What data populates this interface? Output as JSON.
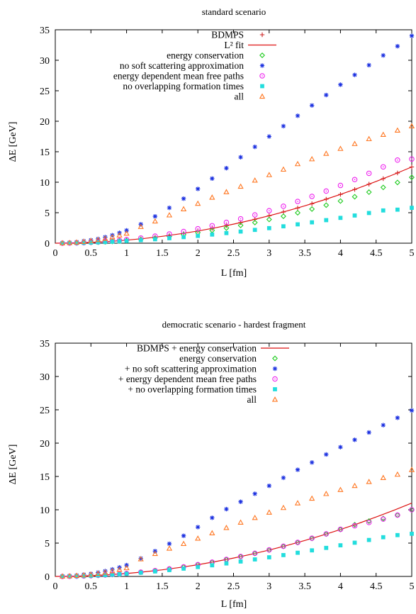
{
  "chart_data": [
    {
      "type": "scatter",
      "title": "standard scenario",
      "xlabel": "L [fm]",
      "ylabel": "ΔE [GeV]",
      "xlim": [
        0,
        5
      ],
      "ylim": [
        0,
        35
      ],
      "xticks": [
        "0",
        "0.5",
        "1",
        "1.5",
        "2",
        "2.5",
        "3",
        "3.5",
        "4",
        "4.5",
        "5"
      ],
      "yticks": [
        "0",
        "5",
        "10",
        "15",
        "20",
        "25",
        "30",
        "35"
      ],
      "grid": false,
      "legend_position": "top-right",
      "series": [
        {
          "name": "BDMPS",
          "marker": "plus",
          "color": "#cc2222",
          "x": [
            0.1,
            0.2,
            0.3,
            0.4,
            0.5,
            0.6,
            0.7,
            0.8,
            0.9,
            1.0,
            1.2,
            1.4,
            1.6,
            1.8,
            2.0,
            2.2,
            2.4,
            2.6,
            2.8,
            3.0,
            3.2,
            3.4,
            3.6,
            3.8,
            4.0,
            4.2,
            4.4,
            4.6,
            4.8,
            5.0
          ],
          "y": [
            0.0,
            0.02,
            0.05,
            0.08,
            0.13,
            0.18,
            0.25,
            0.32,
            0.4,
            0.5,
            0.72,
            0.98,
            1.28,
            1.62,
            2.0,
            2.42,
            2.88,
            3.38,
            3.92,
            4.5,
            5.12,
            5.78,
            6.48,
            7.22,
            8.0,
            8.82,
            9.68,
            10.58,
            11.52,
            12.5
          ]
        },
        {
          "name": "L² fit",
          "marker": "line",
          "color": "#dd1111",
          "x": [
            0,
            0.25,
            0.5,
            0.75,
            1.0,
            1.25,
            1.5,
            1.75,
            2.0,
            2.25,
            2.5,
            2.75,
            3.0,
            3.25,
            3.5,
            3.75,
            4.0,
            4.25,
            4.5,
            4.75,
            5.0
          ],
          "y": [
            0,
            0.03,
            0.13,
            0.28,
            0.5,
            0.78,
            1.13,
            1.53,
            2.0,
            2.53,
            3.13,
            3.78,
            4.5,
            5.28,
            6.13,
            7.03,
            8.0,
            9.03,
            10.13,
            11.28,
            12.5
          ]
        },
        {
          "name": "energy conservation",
          "marker": "diamond",
          "color": "#22cc22",
          "x": [
            0.1,
            0.2,
            0.3,
            0.4,
            0.5,
            0.6,
            0.7,
            0.8,
            0.9,
            1.0,
            1.2,
            1.4,
            1.6,
            1.8,
            2.0,
            2.2,
            2.4,
            2.6,
            2.8,
            3.0,
            3.2,
            3.4,
            3.6,
            3.8,
            4.0,
            4.2,
            4.4,
            4.6,
            4.8,
            5.0
          ],
          "y": [
            0.0,
            0.02,
            0.04,
            0.07,
            0.11,
            0.16,
            0.21,
            0.28,
            0.35,
            0.43,
            0.62,
            0.85,
            1.11,
            1.4,
            1.73,
            2.1,
            2.49,
            2.92,
            3.39,
            3.89,
            4.42,
            4.99,
            5.6,
            6.24,
            6.91,
            7.62,
            8.37,
            9.15,
            9.96,
            10.8
          ]
        },
        {
          "name": "no soft scattering approximation",
          "marker": "star",
          "color": "#1a2fe0",
          "x": [
            0.1,
            0.2,
            0.3,
            0.4,
            0.5,
            0.6,
            0.7,
            0.8,
            0.9,
            1.0,
            1.2,
            1.4,
            1.6,
            1.8,
            2.0,
            2.2,
            2.4,
            2.6,
            2.8,
            3.0,
            3.2,
            3.4,
            3.6,
            3.8,
            4.0,
            4.2,
            4.4,
            4.6,
            4.8,
            5.0
          ],
          "y": [
            0.03,
            0.1,
            0.2,
            0.35,
            0.5,
            0.7,
            1.0,
            1.3,
            1.7,
            2.1,
            3.1,
            4.4,
            5.8,
            7.3,
            8.9,
            10.6,
            12.3,
            14.1,
            15.8,
            17.5,
            19.2,
            20.9,
            22.6,
            24.3,
            26.0,
            27.6,
            29.2,
            30.8,
            32.3,
            34.0
          ]
        },
        {
          "name": "energy dependent mean free paths",
          "marker": "circle",
          "color": "#ee22ee",
          "x": [
            0.1,
            0.2,
            0.3,
            0.4,
            0.5,
            0.6,
            0.7,
            0.8,
            0.9,
            1.0,
            1.2,
            1.4,
            1.6,
            1.8,
            2.0,
            2.2,
            2.4,
            2.6,
            2.8,
            3.0,
            3.2,
            3.4,
            3.6,
            3.8,
            4.0,
            4.2,
            4.4,
            4.6,
            4.8,
            5.0
          ],
          "y": [
            0.0,
            0.02,
            0.05,
            0.09,
            0.15,
            0.21,
            0.29,
            0.38,
            0.48,
            0.59,
            0.85,
            1.16,
            1.51,
            1.92,
            2.37,
            2.87,
            3.41,
            4.0,
            4.64,
            5.33,
            6.06,
            6.84,
            7.67,
            8.55,
            9.47,
            10.44,
            11.46,
            12.52,
            13.63,
            13.8
          ]
        },
        {
          "name": "no overlapping formation times",
          "marker": "square",
          "color": "#22dddd",
          "x": [
            0.1,
            0.2,
            0.3,
            0.4,
            0.5,
            0.6,
            0.7,
            0.8,
            0.9,
            1.0,
            1.2,
            1.4,
            1.6,
            1.8,
            2.0,
            2.2,
            2.4,
            2.6,
            2.8,
            3.0,
            3.2,
            3.4,
            3.6,
            3.8,
            4.0,
            4.2,
            4.4,
            4.6,
            4.8,
            5.0
          ],
          "y": [
            0.0,
            0.02,
            0.04,
            0.07,
            0.1,
            0.14,
            0.19,
            0.24,
            0.3,
            0.37,
            0.5,
            0.65,
            0.82,
            1.0,
            1.2,
            1.42,
            1.66,
            1.91,
            2.18,
            2.47,
            2.77,
            3.09,
            3.42,
            3.78,
            4.15,
            4.54,
            4.95,
            5.37,
            5.5,
            5.8
          ]
        },
        {
          "name": "all",
          "marker": "triangle",
          "color": "#ff7722",
          "x": [
            0.1,
            0.2,
            0.3,
            0.4,
            0.5,
            0.6,
            0.7,
            0.8,
            0.9,
            1.0,
            1.2,
            1.4,
            1.6,
            1.8,
            2.0,
            2.2,
            2.4,
            2.6,
            2.8,
            3.0,
            3.2,
            3.4,
            3.6,
            3.8,
            4.0,
            4.2,
            4.4,
            4.6,
            4.8,
            5.0
          ],
          "y": [
            0.02,
            0.07,
            0.15,
            0.25,
            0.4,
            0.55,
            0.75,
            1.0,
            1.3,
            1.6,
            2.7,
            3.6,
            4.6,
            5.6,
            6.5,
            7.5,
            8.4,
            9.3,
            10.3,
            11.2,
            12.1,
            13.0,
            13.8,
            14.7,
            15.5,
            16.3,
            17.1,
            17.8,
            18.5,
            19.2
          ]
        }
      ]
    },
    {
      "type": "scatter",
      "title": "democratic scenario - hardest fragment",
      "xlabel": "L [fm]",
      "ylabel": "ΔE [GeV]",
      "xlim": [
        0,
        5
      ],
      "ylim": [
        0,
        35
      ],
      "xticks": [
        "0",
        "0.5",
        "1",
        "1.5",
        "2",
        "2.5",
        "3",
        "3.5",
        "4",
        "4.5",
        "5"
      ],
      "yticks": [
        "0",
        "5",
        "10",
        "15",
        "20",
        "25",
        "30",
        "35"
      ],
      "grid": false,
      "legend_position": "top-right",
      "series": [
        {
          "name": "BDMPS + energy conservation",
          "marker": "line",
          "color": "#dd1111",
          "x": [
            0,
            0.25,
            0.5,
            0.75,
            1.0,
            1.25,
            1.5,
            1.75,
            2.0,
            2.25,
            2.5,
            2.75,
            3.0,
            3.25,
            3.5,
            3.75,
            4.0,
            4.25,
            4.5,
            4.75,
            5.0
          ],
          "y": [
            0,
            0.03,
            0.11,
            0.25,
            0.44,
            0.69,
            0.99,
            1.35,
            1.76,
            2.23,
            2.75,
            3.33,
            3.96,
            4.65,
            5.39,
            6.19,
            7.04,
            7.95,
            8.91,
            9.93,
            11.0
          ]
        },
        {
          "name": "energy conservation",
          "marker": "diamond",
          "color": "#22cc22",
          "x": [
            0.1,
            0.2,
            0.3,
            0.4,
            0.5,
            0.6,
            0.7,
            0.8,
            0.9,
            1.0,
            1.2,
            1.4,
            1.6,
            1.8,
            2.0,
            2.2,
            2.4,
            2.6,
            2.8,
            3.0,
            3.2,
            3.4,
            3.6,
            3.8,
            4.0,
            4.2,
            4.4,
            4.6,
            4.8,
            5.0
          ],
          "y": [
            0.0,
            0.02,
            0.04,
            0.07,
            0.11,
            0.16,
            0.22,
            0.28,
            0.36,
            0.44,
            0.63,
            0.86,
            1.12,
            1.42,
            1.76,
            2.13,
            2.53,
            2.97,
            3.45,
            3.96,
            4.5,
            5.08,
            5.7,
            6.35,
            7.04,
            7.76,
            8.3,
            8.7,
            9.2,
            10.0
          ]
        },
        {
          "name": "+ no soft scattering approximation",
          "marker": "star",
          "color": "#1a2fe0",
          "x": [
            0.1,
            0.2,
            0.3,
            0.4,
            0.5,
            0.6,
            0.7,
            0.8,
            0.9,
            1.0,
            1.2,
            1.4,
            1.6,
            1.8,
            2.0,
            2.2,
            2.4,
            2.6,
            2.8,
            3.0,
            3.2,
            3.4,
            3.6,
            3.8,
            4.0,
            4.2,
            4.4,
            4.6,
            4.8,
            5.0
          ],
          "y": [
            0.03,
            0.08,
            0.16,
            0.27,
            0.4,
            0.58,
            0.8,
            1.05,
            1.35,
            1.7,
            2.7,
            3.8,
            4.9,
            6.1,
            7.4,
            8.8,
            10.1,
            11.2,
            12.4,
            13.6,
            14.8,
            16.0,
            17.1,
            18.3,
            19.4,
            20.5,
            21.6,
            22.7,
            23.8,
            24.9
          ]
        },
        {
          "name": "+ energy dependent mean free paths",
          "marker": "circle",
          "color": "#ee22ee",
          "x": [
            0.1,
            0.2,
            0.3,
            0.4,
            0.5,
            0.6,
            0.7,
            0.8,
            0.9,
            1.0,
            1.2,
            1.4,
            1.6,
            1.8,
            2.0,
            2.2,
            2.4,
            2.6,
            2.8,
            3.0,
            3.2,
            3.4,
            3.6,
            3.8,
            4.0,
            4.2,
            4.4,
            4.6,
            4.8,
            5.0
          ],
          "y": [
            0.0,
            0.02,
            0.04,
            0.07,
            0.11,
            0.16,
            0.22,
            0.29,
            0.36,
            0.45,
            0.64,
            0.87,
            1.13,
            1.43,
            1.77,
            2.14,
            2.55,
            2.99,
            3.47,
            3.98,
            4.53,
            5.11,
            5.73,
            6.38,
            7.07,
            7.6,
            8.1,
            8.6,
            9.2,
            10.0
          ]
        },
        {
          "name": "+ no overlapping formation times",
          "marker": "square",
          "color": "#22dddd",
          "x": [
            0.1,
            0.2,
            0.3,
            0.4,
            0.5,
            0.6,
            0.7,
            0.8,
            0.9,
            1.0,
            1.2,
            1.4,
            1.6,
            1.8,
            2.0,
            2.2,
            2.4,
            2.6,
            2.8,
            3.0,
            3.2,
            3.4,
            3.6,
            3.8,
            4.0,
            4.2,
            4.4,
            4.6,
            4.8,
            5.0
          ],
          "y": [
            0.0,
            0.02,
            0.04,
            0.07,
            0.1,
            0.15,
            0.2,
            0.26,
            0.32,
            0.4,
            0.56,
            0.75,
            0.95,
            1.17,
            1.41,
            1.67,
            1.95,
            2.24,
            2.55,
            2.87,
            3.2,
            3.55,
            3.91,
            4.28,
            4.67,
            5.06,
            5.47,
            5.88,
            6.2,
            6.4
          ]
        },
        {
          "name": "all",
          "marker": "triangle",
          "color": "#ff7722",
          "x": [
            0.1,
            0.2,
            0.3,
            0.4,
            0.5,
            0.6,
            0.7,
            0.8,
            0.9,
            1.0,
            1.2,
            1.4,
            1.6,
            1.8,
            2.0,
            2.2,
            2.4,
            2.6,
            2.8,
            3.0,
            3.2,
            3.4,
            3.6,
            3.8,
            4.0,
            4.2,
            4.4,
            4.6,
            4.8,
            5.0
          ],
          "y": [
            0.02,
            0.06,
            0.12,
            0.2,
            0.3,
            0.43,
            0.6,
            0.8,
            1.02,
            1.27,
            2.6,
            3.4,
            4.2,
            4.9,
            5.7,
            6.5,
            7.3,
            8.1,
            8.8,
            9.6,
            10.3,
            11.0,
            11.7,
            12.4,
            13.0,
            13.6,
            14.2,
            14.8,
            15.3,
            16.0
          ]
        }
      ]
    }
  ]
}
